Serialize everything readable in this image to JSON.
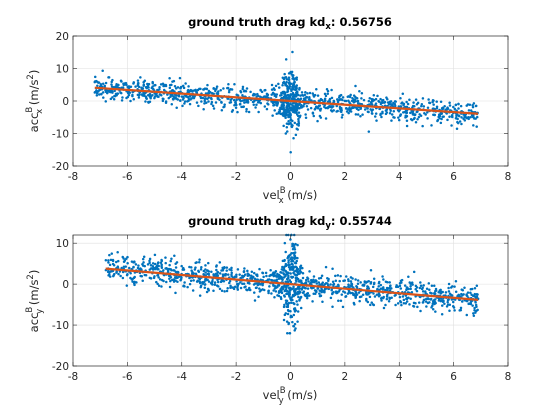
{
  "chart_data": [
    {
      "type": "scatter",
      "title": "ground truth drag kd",
      "title_subscript": "x",
      "title_value": ": 0.56756",
      "xlabel": {
        "base": "vel",
        "sup": "B",
        "sub": "x",
        "unit": " (m/s)"
      },
      "ylabel": {
        "base": "acc",
        "sup": "B",
        "sub": "x",
        "unit": " (m/s",
        "unit_sup": "2",
        "unit_end": ")"
      },
      "xlim": [
        -8,
        8
      ],
      "ylim": [
        -20,
        20
      ],
      "xticks": [
        -8,
        -6,
        -4,
        -2,
        0,
        2,
        4,
        6,
        8
      ],
      "yticks": [
        -20,
        -10,
        0,
        10,
        20
      ],
      "grid": true,
      "point_cloud": {
        "x_range": [
          -7.2,
          6.9
        ],
        "center_band_halfwidth": 3.5,
        "spike_at_zero": 7,
        "max_abs_y": 16
      },
      "series": [
        {
          "kind": "scatter",
          "color": "#0072bd"
        },
        {
          "kind": "fit",
          "color": "#d95319",
          "x": [
            -7.2,
            6.9
          ],
          "y": [
            4.09,
            -3.92
          ]
        }
      ]
    },
    {
      "type": "scatter",
      "title": "ground truth drag kd",
      "title_subscript": "y",
      "title_value": ": 0.55744",
      "xlabel": {
        "base": "vel",
        "sup": "B",
        "sub": "y",
        "unit": " (m/s)"
      },
      "ylabel": {
        "base": "acc",
        "sup": "B",
        "sub": "y",
        "unit": " (m/s",
        "unit_sup": "2",
        "unit_end": ")"
      },
      "xlim": [
        -8,
        8
      ],
      "ylim": [
        -20,
        12
      ],
      "xticks": [
        -8,
        -6,
        -4,
        -2,
        0,
        2,
        4,
        6,
        8
      ],
      "yticks": [
        -20,
        -10,
        0,
        10
      ],
      "grid": true,
      "point_cloud": {
        "x_range": [
          -6.8,
          6.9
        ],
        "center_band_halfwidth": 3.0,
        "spike_at_zero": 11,
        "max_abs_y": 12
      },
      "series": [
        {
          "kind": "scatter",
          "color": "#0072bd"
        },
        {
          "kind": "fit",
          "color": "#d95319",
          "x": [
            -6.8,
            6.9
          ],
          "y": [
            3.79,
            -3.85
          ]
        }
      ]
    }
  ]
}
